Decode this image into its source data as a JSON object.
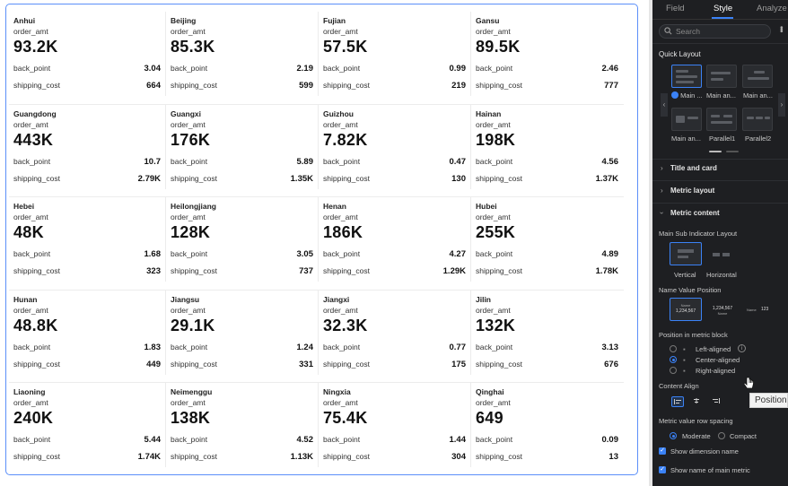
{
  "cards": [
    {
      "dim": "Anhui",
      "main_name": "order_amt",
      "main_val": "93.2K",
      "sub1_name": "back_point",
      "sub1_val": "3.04",
      "sub2_name": "shipping_cost",
      "sub2_val": "664"
    },
    {
      "dim": "Beijing",
      "main_name": "order_amt",
      "main_val": "85.3K",
      "sub1_name": "back_point",
      "sub1_val": "2.19",
      "sub2_name": "shipping_cost",
      "sub2_val": "599"
    },
    {
      "dim": "Fujian",
      "main_name": "order_amt",
      "main_val": "57.5K",
      "sub1_name": "back_point",
      "sub1_val": "0.99",
      "sub2_name": "shipping_cost",
      "sub2_val": "219"
    },
    {
      "dim": "Gansu",
      "main_name": "order_amt",
      "main_val": "89.5K",
      "sub1_name": "back_point",
      "sub1_val": "2.46",
      "sub2_name": "shipping_cost",
      "sub2_val": "777"
    },
    {
      "dim": "Guangdong",
      "main_name": "order_amt",
      "main_val": "443K",
      "sub1_name": "back_point",
      "sub1_val": "10.7",
      "sub2_name": "shipping_cost",
      "sub2_val": "2.79K"
    },
    {
      "dim": "Guangxi",
      "main_name": "order_amt",
      "main_val": "176K",
      "sub1_name": "back_point",
      "sub1_val": "5.89",
      "sub2_name": "shipping_cost",
      "sub2_val": "1.35K"
    },
    {
      "dim": "Guizhou",
      "main_name": "order_amt",
      "main_val": "7.82K",
      "sub1_name": "back_point",
      "sub1_val": "0.47",
      "sub2_name": "shipping_cost",
      "sub2_val": "130"
    },
    {
      "dim": "Hainan",
      "main_name": "order_amt",
      "main_val": "198K",
      "sub1_name": "back_point",
      "sub1_val": "4.56",
      "sub2_name": "shipping_cost",
      "sub2_val": "1.37K"
    },
    {
      "dim": "Hebei",
      "main_name": "order_amt",
      "main_val": "48K",
      "sub1_name": "back_point",
      "sub1_val": "1.68",
      "sub2_name": "shipping_cost",
      "sub2_val": "323"
    },
    {
      "dim": "Heilongjiang",
      "main_name": "order_amt",
      "main_val": "128K",
      "sub1_name": "back_point",
      "sub1_val": "3.05",
      "sub2_name": "shipping_cost",
      "sub2_val": "737"
    },
    {
      "dim": "Henan",
      "main_name": "order_amt",
      "main_val": "186K",
      "sub1_name": "back_point",
      "sub1_val": "4.27",
      "sub2_name": "shipping_cost",
      "sub2_val": "1.29K"
    },
    {
      "dim": "Hubei",
      "main_name": "order_amt",
      "main_val": "255K",
      "sub1_name": "back_point",
      "sub1_val": "4.89",
      "sub2_name": "shipping_cost",
      "sub2_val": "1.78K"
    },
    {
      "dim": "Hunan",
      "main_name": "order_amt",
      "main_val": "48.8K",
      "sub1_name": "back_point",
      "sub1_val": "1.83",
      "sub2_name": "shipping_cost",
      "sub2_val": "449"
    },
    {
      "dim": "Jiangsu",
      "main_name": "order_amt",
      "main_val": "29.1K",
      "sub1_name": "back_point",
      "sub1_val": "1.24",
      "sub2_name": "shipping_cost",
      "sub2_val": "331"
    },
    {
      "dim": "Jiangxi",
      "main_name": "order_amt",
      "main_val": "32.3K",
      "sub1_name": "back_point",
      "sub1_val": "0.77",
      "sub2_name": "shipping_cost",
      "sub2_val": "175"
    },
    {
      "dim": "Jilin",
      "main_name": "order_amt",
      "main_val": "132K",
      "sub1_name": "back_point",
      "sub1_val": "3.13",
      "sub2_name": "shipping_cost",
      "sub2_val": "676"
    },
    {
      "dim": "Liaoning",
      "main_name": "order_amt",
      "main_val": "240K",
      "sub1_name": "back_point",
      "sub1_val": "5.44",
      "sub2_name": "shipping_cost",
      "sub2_val": "1.74K"
    },
    {
      "dim": "Neimenggu",
      "main_name": "order_amt",
      "main_val": "138K",
      "sub1_name": "back_point",
      "sub1_val": "4.52",
      "sub2_name": "shipping_cost",
      "sub2_val": "1.13K"
    },
    {
      "dim": "Ningxia",
      "main_name": "order_amt",
      "main_val": "75.4K",
      "sub1_name": "back_point",
      "sub1_val": "1.44",
      "sub2_name": "shipping_cost",
      "sub2_val": "304"
    },
    {
      "dim": "Qinghai",
      "main_name": "order_amt",
      "main_val": "649",
      "sub1_name": "back_point",
      "sub1_val": "0.09",
      "sub2_name": "shipping_cost",
      "sub2_val": "13"
    }
  ],
  "panel": {
    "tabs": [
      "Field",
      "Style",
      "Analyze"
    ],
    "search_placeholder": "Search",
    "quick_layout": {
      "title": "Quick Layout",
      "options": [
        "Main ...",
        "Main an...",
        "Main an...",
        "Main an...",
        "Parallel1",
        "Parallel2"
      ]
    },
    "sections": {
      "title_and_card": "Title and card",
      "metric_layout": "Metric layout",
      "metric_content": "Metric content"
    },
    "main_sub_layout": {
      "label": "Main Sub Indicator Layout",
      "vertical": "Vertical",
      "horizontal": "Horizontal"
    },
    "name_value_position": {
      "label": "Name Value Position",
      "sample_name": "Name",
      "sample_value": "1,234,567",
      "sample_short": "123"
    },
    "position_in_block": {
      "label": "Position in metric block",
      "left": "Left-aligned",
      "center": "Center-aligned",
      "right": "Right-aligned"
    },
    "content_align": {
      "label": "Content Align"
    },
    "row_spacing": {
      "label": "Metric value row spacing",
      "moderate": "Moderate",
      "compact": "Compact"
    },
    "checks": {
      "show_dimension_name": "Show dimension name",
      "show_main_metric_name": "Show name of main metric"
    },
    "tooltip": "Position"
  },
  "colors": {
    "accent": "#3b82f6",
    "card_border": "#5b8ff9",
    "panel_bg": "#1e1f22"
  }
}
